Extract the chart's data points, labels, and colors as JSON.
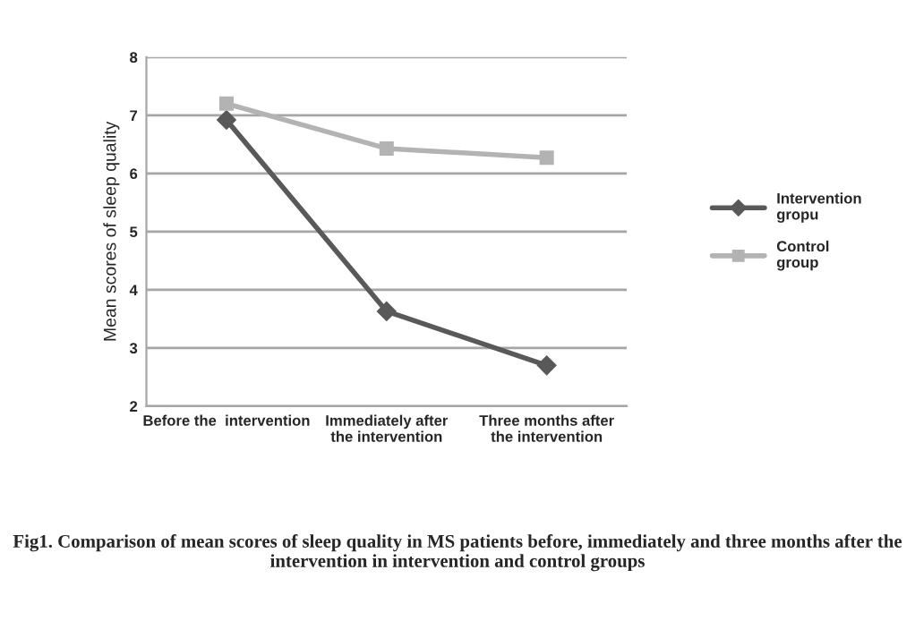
{
  "chart_data": {
    "type": "line",
    "categories": [
      "Before the  intervention",
      "Immediately after\nthe intervention",
      "Three months after\nthe intervention"
    ],
    "series": [
      {
        "name": "Intervention\ngropu",
        "color": "#595959",
        "marker": "diamond",
        "values": [
          6.92,
          3.63,
          2.7
        ]
      },
      {
        "name": "Control\ngroup",
        "color": "#b3b3b3",
        "marker": "square",
        "values": [
          7.2,
          6.43,
          6.27
        ]
      }
    ],
    "ylabel": "Mean scores of sleep quality",
    "ylim": [
      2,
      8
    ],
    "yticks": [
      2,
      3,
      4,
      5,
      6,
      7,
      8
    ],
    "grid": "y",
    "legend": "right",
    "annotations": [
      "Fig1. Comparison of mean scores of sleep quality in MS patients before, immediately and three months after the intervention in intervention and control groups"
    ]
  }
}
